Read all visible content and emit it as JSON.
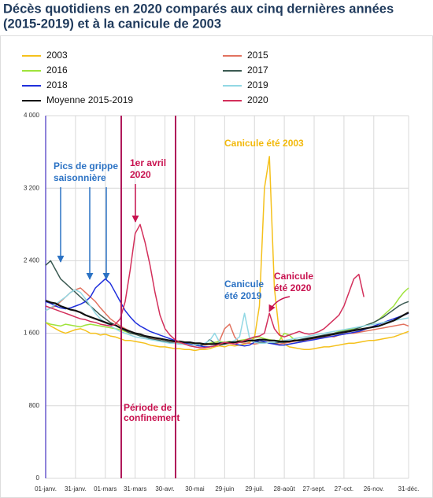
{
  "chart_data": {
    "type": "line",
    "title_lines": [
      "Décès quotidiens en 2020 comparés aux cinq dernières années",
      "(2015-2019) et à la canicule de 2003"
    ],
    "categories": [
      "01-janv.",
      null,
      null,
      null,
      null,
      null,
      "31-janv.",
      null,
      null,
      null,
      null,
      null,
      "01-mars",
      null,
      null,
      null,
      null,
      null,
      "31-mars",
      null,
      null,
      null,
      null,
      null,
      "30-avr.",
      null,
      null,
      null,
      null,
      null,
      "30-mai",
      null,
      null,
      null,
      null,
      null,
      "29-juin",
      null,
      null,
      null,
      null,
      null,
      "29-juil.",
      null,
      null,
      null,
      null,
      null,
      "28-août",
      null,
      null,
      null,
      null,
      null,
      "27-sept.",
      null,
      null,
      null,
      null,
      null,
      "27-oct.",
      null,
      null,
      null,
      null,
      null,
      "26-nov.",
      null,
      null,
      null,
      null,
      null,
      null,
      "31-déc."
    ],
    "ylim": [
      0,
      4000
    ],
    "yticks": [
      0,
      800,
      {
        "value": 1600,
        "label": "1 600"
      },
      {
        "value": 2400,
        "label": "2 400"
      },
      {
        "value": 3200,
        "label": "3 200"
      },
      {
        "value": 4000,
        "label": "4 000"
      }
    ],
    "grid": true,
    "series": [
      {
        "name": "2003",
        "color": "#f5c11c",
        "values": [
          1720,
          1680,
          1650,
          1620,
          1600,
          1620,
          1640,
          1650,
          1630,
          1600,
          1600,
          1580,
          1590,
          1570,
          1560,
          1540,
          1520,
          1520,
          1510,
          1500,
          1490,
          1470,
          1460,
          1450,
          1450,
          1440,
          1430,
          1430,
          1420,
          1420,
          1410,
          1420,
          1420,
          1430,
          1450,
          1460,
          1450,
          1470,
          1460,
          1470,
          1480,
          1500,
          1550,
          1900,
          3200,
          3550,
          2100,
          1600,
          1480,
          1450,
          1440,
          1430,
          1420,
          1420,
          1430,
          1440,
          1450,
          1450,
          1460,
          1470,
          1480,
          1490,
          1490,
          1500,
          1510,
          1520,
          1520,
          1530,
          1540,
          1550,
          1560,
          1580,
          1600,
          1620
        ]
      },
      {
        "name": "2015",
        "color": "#e2725f",
        "values": [
          1850,
          1880,
          1900,
          1950,
          2000,
          2050,
          2080,
          2100,
          2050,
          2000,
          1950,
          1880,
          1820,
          1760,
          1720,
          1680,
          1650,
          1620,
          1600,
          1580,
          1560,
          1550,
          1540,
          1520,
          1510,
          1500,
          1500,
          1490,
          1480,
          1480,
          1470,
          1480,
          1470,
          1480,
          1490,
          1520,
          1650,
          1700,
          1560,
          1500,
          1490,
          1490,
          1480,
          1490,
          1500,
          1500,
          1490,
          1480,
          1490,
          1500,
          1510,
          1520,
          1520,
          1530,
          1540,
          1550,
          1560,
          1570,
          1560,
          1580,
          1590,
          1600,
          1600,
          1610,
          1620,
          1630,
          1640,
          1650,
          1660,
          1670,
          1680,
          1690,
          1700,
          1680
        ]
      },
      {
        "name": "2016",
        "color": "#9fe33c",
        "values": [
          1720,
          1700,
          1690,
          1680,
          1700,
          1690,
          1680,
          1670,
          1690,
          1700,
          1690,
          1680,
          1670,
          1660,
          1650,
          1640,
          1620,
          1600,
          1590,
          1580,
          1570,
          1560,
          1550,
          1540,
          1530,
          1520,
          1510,
          1500,
          1500,
          1490,
          1490,
          1480,
          1480,
          1490,
          1500,
          1510,
          1500,
          1510,
          1500,
          1520,
          1530,
          1540,
          1550,
          1560,
          1540,
          1530,
          1520,
          1520,
          1600,
          1580,
          1530,
          1520,
          1530,
          1540,
          1550,
          1560,
          1570,
          1580,
          1600,
          1620,
          1630,
          1640,
          1650,
          1660,
          1680,
          1700,
          1720,
          1750,
          1800,
          1850,
          1900,
          1980,
          2050,
          2100
        ]
      },
      {
        "name": "2017",
        "color": "#3b5a52",
        "values": [
          2350,
          2400,
          2300,
          2200,
          2150,
          2100,
          2050,
          2000,
          1950,
          1900,
          1850,
          1800,
          1760,
          1720,
          1690,
          1660,
          1630,
          1600,
          1590,
          1570,
          1560,
          1540,
          1530,
          1520,
          1510,
          1500,
          1490,
          1480,
          1480,
          1470,
          1470,
          1460,
          1480,
          1530,
          1490,
          1470,
          1480,
          1490,
          1500,
          1500,
          1510,
          1520,
          1510,
          1500,
          1500,
          1490,
          1490,
          1500,
          1500,
          1510,
          1520,
          1530,
          1540,
          1550,
          1560,
          1570,
          1580,
          1590,
          1600,
          1610,
          1620,
          1630,
          1640,
          1660,
          1680,
          1700,
          1720,
          1750,
          1780,
          1820,
          1860,
          1900,
          1930,
          1950
        ]
      },
      {
        "name": "2018",
        "color": "#1f2fdc",
        "values": [
          1950,
          1930,
          1900,
          1880,
          1870,
          1880,
          1900,
          1920,
          1950,
          2000,
          2100,
          2150,
          2200,
          2150,
          2050,
          1950,
          1850,
          1780,
          1720,
          1680,
          1650,
          1620,
          1600,
          1580,
          1560,
          1540,
          1520,
          1500,
          1490,
          1480,
          1470,
          1460,
          1450,
          1450,
          1460,
          1480,
          1500,
          1490,
          1480,
          1470,
          1460,
          1470,
          1500,
          1520,
          1510,
          1490,
          1480,
          1470,
          1470,
          1480,
          1490,
          1500,
          1510,
          1520,
          1530,
          1540,
          1550,
          1560,
          1570,
          1580,
          1590,
          1600,
          1610,
          1620,
          1640,
          1660,
          1680,
          1700,
          1720,
          1740,
          1760,
          1780,
          1800,
          1820
        ]
      },
      {
        "name": "2019",
        "color": "#92d8e4",
        "values": [
          1850,
          1880,
          1920,
          1960,
          2000,
          2050,
          2080,
          2050,
          1980,
          1900,
          1820,
          1760,
          1720,
          1680,
          1650,
          1620,
          1600,
          1580,
          1560,
          1550,
          1540,
          1530,
          1520,
          1510,
          1500,
          1490,
          1490,
          1480,
          1480,
          1470,
          1470,
          1480,
          1490,
          1520,
          1600,
          1500,
          1490,
          1500,
          1520,
          1560,
          1820,
          1550,
          1500,
          1490,
          1490,
          1500,
          1500,
          1510,
          1520,
          1530,
          1540,
          1550,
          1560,
          1570,
          1580,
          1590,
          1600,
          1610,
          1620,
          1630,
          1640,
          1650,
          1660,
          1670,
          1680,
          1690,
          1700,
          1710,
          1720,
          1730,
          1740,
          1750,
          1760,
          1770
        ]
      },
      {
        "name": "Moyenne 2015-2019",
        "color": "#111111",
        "values": [
          1960,
          1940,
          1930,
          1900,
          1880,
          1860,
          1850,
          1830,
          1800,
          1780,
          1760,
          1740,
          1720,
          1700,
          1690,
          1660,
          1640,
          1620,
          1600,
          1590,
          1570,
          1560,
          1550,
          1540,
          1530,
          1520,
          1510,
          1510,
          1500,
          1500,
          1490,
          1490,
          1480,
          1480,
          1480,
          1490,
          1490,
          1500,
          1500,
          1510,
          1510,
          1520,
          1520,
          1530,
          1530,
          1520,
          1520,
          1510,
          1510,
          1510,
          1520,
          1520,
          1530,
          1540,
          1550,
          1560,
          1570,
          1580,
          1590,
          1600,
          1610,
          1620,
          1630,
          1640,
          1650,
          1660,
          1670,
          1680,
          1700,
          1720,
          1740,
          1770,
          1800,
          1830
        ]
      },
      {
        "name": "2020",
        "color": "#d32f5b",
        "values": [
          1900,
          1880,
          1860,
          1840,
          1820,
          1800,
          1780,
          1760,
          1750,
          1730,
          1720,
          1700,
          1690,
          1680,
          1700,
          1760,
          1950,
          2300,
          2700,
          2800,
          2600,
          2350,
          2050,
          1800,
          1650,
          1580,
          1530,
          1500,
          1480,
          1460,
          1450,
          1440,
          1440,
          1450,
          1460,
          1480,
          1500,
          1490,
          1480,
          1500,
          1520,
          1540,
          1560,
          1570,
          1600,
          1820,
          1650,
          1580,
          1560,
          1580,
          1600,
          1620,
          1600,
          1590,
          1600,
          1620,
          1650,
          1700,
          1750,
          1800,
          1900,
          2050,
          2200,
          2250,
          2000,
          null,
          null,
          null,
          null,
          null,
          null,
          null,
          null,
          null
        ]
      }
    ],
    "annotations": [
      {
        "lines": [
          "Pics de grippe",
          "saisonnière"
        ],
        "color": "#2b72c4"
      },
      {
        "lines": [
          "1er avril",
          "2020"
        ],
        "color": "#c8124f"
      },
      {
        "lines": [
          "Canicule été 2003"
        ],
        "color": "#f2b90c"
      },
      {
        "lines": [
          "Canicule",
          "été 2019"
        ],
        "color": "#2b72c4"
      },
      {
        "lines": [
          "Canicule",
          "été 2020"
        ],
        "color": "#c8124f"
      },
      {
        "lines": [
          "Période de",
          "confinement"
        ],
        "color": "#c8124f"
      }
    ]
  }
}
